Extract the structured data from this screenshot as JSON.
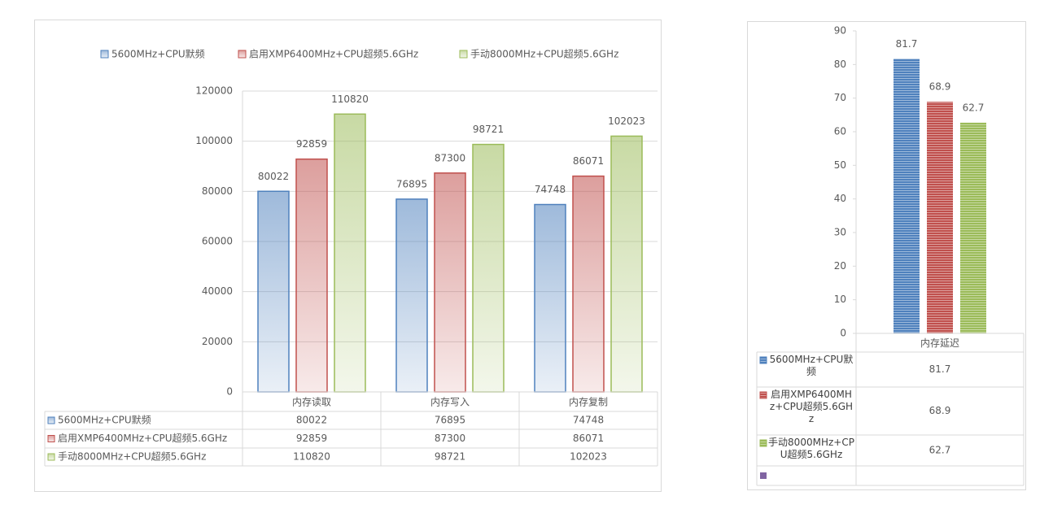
{
  "chart_data": [
    {
      "type": "bar",
      "categories": [
        "内存读取",
        "内存写入",
        "内存复制"
      ],
      "series": [
        {
          "name": "5600MHz+CPU默频",
          "color": "#4f81bd",
          "values": [
            80022,
            76895,
            74748
          ]
        },
        {
          "name": "启用XMP6400MHz+CPU超频5.6GHz",
          "color": "#c0504d",
          "values": [
            92859,
            87300,
            86071
          ]
        },
        {
          "name": "手动8000MHz+CPU超频5.6GHz",
          "color": "#9bbb59",
          "values": [
            110820,
            98721,
            102023
          ]
        }
      ],
      "ylim": [
        0,
        120000
      ],
      "yticks": [
        0,
        20000,
        40000,
        60000,
        80000,
        100000,
        120000
      ],
      "grid": true,
      "legend": "top"
    },
    {
      "type": "bar",
      "categories": [
        "内存延迟"
      ],
      "series": [
        {
          "name": "5600MHz+CPU默频",
          "color": "#4f81bd",
          "values": [
            81.7
          ]
        },
        {
          "name": "启用XMP6400MHz+CPU超频5.6GHz",
          "color": "#c0504d",
          "values": [
            68.9
          ]
        },
        {
          "name": "手动8000MHz+CPU超频5.6GHz",
          "color": "#9bbb59",
          "values": [
            62.7
          ]
        }
      ],
      "ylim": [
        0,
        90
      ],
      "yticks": [
        0,
        10,
        20,
        30,
        40,
        50,
        60,
        70,
        80,
        90
      ],
      "grid": false
    }
  ]
}
